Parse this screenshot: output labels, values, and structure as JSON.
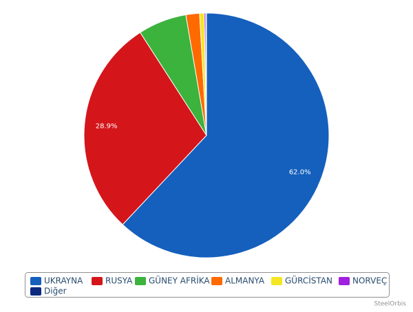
{
  "chart_data": {
    "type": "pie",
    "categories": [
      "UKRAYNA",
      "RUSYA",
      "GÜNEY AFRİKA",
      "ALMANYA",
      "GÜRCİSTAN",
      "NORVEÇ",
      "Diğer"
    ],
    "values": [
      62.0,
      28.9,
      6.4,
      1.8,
      0.6,
      0.2,
      0.1
    ],
    "value_labels": [
      "62.0%",
      "28.9%",
      null,
      null,
      null,
      null,
      null
    ],
    "colors": [
      "#1560bd",
      "#d4161b",
      "#3cb33c",
      "#ff6a00",
      "#f5e623",
      "#a020e0",
      "#0a2a80"
    ],
    "credit": "SteelOrbis"
  }
}
